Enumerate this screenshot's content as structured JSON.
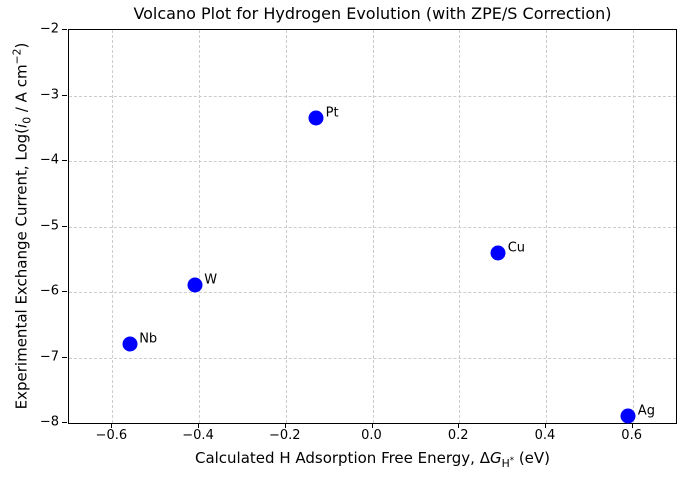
{
  "chart_data": {
    "type": "scatter",
    "title": "Volcano Plot for Hydrogen Evolution (with ZPE/S Correction)",
    "xlabel_parts": {
      "pre": "Calculated H Adsorption Free Energy, Δ",
      "sym": "G",
      "sub": "H",
      "sup": "*",
      "post": " (eV)"
    },
    "ylabel_parts": {
      "pre": "Experimental Exchange Current, Log(",
      "sym": "i",
      "sub": "0",
      "mid": " / A cm",
      "sup": "−2",
      "end": ")"
    },
    "xlabel_plain": "Calculated H Adsorption Free Energy, ΔG_H* (eV)",
    "ylabel_plain": "Experimental Exchange Current, Log(i_0 / A cm^-2)",
    "xlim": [
      -0.7,
      0.7
    ],
    "ylim": [
      -8,
      -2
    ],
    "xticks": [
      -0.6,
      -0.4,
      -0.2,
      0.0,
      0.2,
      0.4,
      0.6
    ],
    "xtick_labels": [
      "−0.6",
      "−0.4",
      "−0.2",
      "0.0",
      "0.2",
      "0.4",
      "0.6"
    ],
    "yticks": [
      -2,
      -3,
      -4,
      -5,
      -6,
      -7,
      -8
    ],
    "ytick_labels": [
      "−2",
      "−3",
      "−4",
      "−5",
      "−6",
      "−7",
      "−8"
    ],
    "grid": true,
    "legend": "none",
    "points": [
      {
        "label": "Nb",
        "x": -0.56,
        "y": -6.8
      },
      {
        "label": "W",
        "x": -0.41,
        "y": -5.9
      },
      {
        "label": "Pt",
        "x": -0.13,
        "y": -3.35
      },
      {
        "label": "Cu",
        "x": 0.29,
        "y": -5.4
      },
      {
        "label": "Ag",
        "x": 0.59,
        "y": -7.9
      }
    ],
    "colors": {
      "marker": "#0000ff",
      "grid": "#cccccc",
      "spine": "#000000",
      "text": "#000000",
      "background": "#ffffff"
    },
    "marker_size_px": 15
  }
}
